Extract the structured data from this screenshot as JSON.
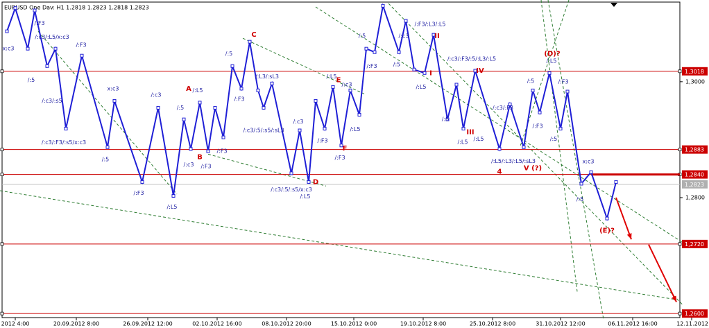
{
  "chart_data": {
    "type": "line",
    "title": "EURUSD  One  Dav: H1  1.2818  1.2823  1.2818  1.2823",
    "x": [
      -12,
      0,
      18,
      28,
      46,
      58,
      73,
      96,
      133,
      143,
      183,
      206,
      228,
      243,
      253,
      266,
      278,
      288,
      300,
      313,
      326,
      338,
      350,
      358,
      370,
      398,
      410,
      423,
      433,
      446,
      458,
      470,
      483,
      496,
      506,
      518,
      530,
      553,
      563,
      575,
      590,
      603,
      623,
      636,
      646,
      663,
      698,
      713,
      733,
      746,
      756,
      770,
      786,
      796,
      816,
      830,
      853,
      866
    ],
    "values": [
      1.3087,
      1.3127,
      1.3057,
      1.3123,
      1.3027,
      1.3057,
      1.2919,
      1.3045,
      1.2887,
      1.2967,
      1.2827,
      1.2955,
      1.2803,
      1.2935,
      1.2884,
      1.2964,
      1.288,
      1.2955,
      1.2904,
      1.3027,
      1.2988,
      1.3069,
      1.2985,
      1.2955,
      1.2997,
      1.2842,
      1.2916,
      1.2827,
      1.2967,
      1.2919,
      1.2991,
      1.289,
      1.2985,
      1.2943,
      1.3057,
      1.3051,
      1.3131,
      1.3051,
      1.3105,
      1.3021,
      1.3015,
      1.3081,
      1.2935,
      1.2995,
      1.2919,
      1.3019,
      1.2884,
      1.2961,
      1.2887,
      1.2985,
      1.2947,
      1.3015,
      1.2919,
      1.2983,
      1.2824,
      1.2844,
      1.2764,
      1.2827
    ],
    "color": "#1f1fd6",
    "xlim": [
      -22,
      958
    ],
    "ylim": [
      1.2593,
      1.3141
    ],
    "xticks": [
      {
        "value": 0,
        "label": "2012 4:00"
      },
      {
        "value": 88,
        "label": "20.09.2012 8:00"
      },
      {
        "value": 191,
        "label": "26.09.2012 12:00"
      },
      {
        "value": 291,
        "label": "02.10.2012 16:00"
      },
      {
        "value": 391,
        "label": "08.10.2012 20:00"
      },
      {
        "value": 488,
        "label": "15.10.2012 0:00"
      },
      {
        "value": 588,
        "label": "19.10.2012 8:00"
      },
      {
        "value": 688,
        "label": "25.10.2012 8:00"
      },
      {
        "value": 786,
        "label": "31.10.2012 12:00"
      },
      {
        "value": 890,
        "label": "06.11.2012 16:00"
      },
      {
        "value": 975,
        "label": "12.11.2012"
      }
    ],
    "yticks": [
      {
        "value": 1.3,
        "label": "1,3000"
      },
      {
        "value": 1.28,
        "label": "1,2800"
      }
    ],
    "levels": [
      {
        "value": 1.3018,
        "label": "1,3018"
      },
      {
        "value": 1.2883,
        "label": "1,2883"
      },
      {
        "value": 1.284,
        "label": "1,2840"
      },
      {
        "value": 1.272,
        "label": "1,2720"
      },
      {
        "value": 1.26,
        "label": "1,2600"
      }
    ],
    "level_color": "#cc0000",
    "current_price": {
      "value": 1.2823,
      "label": "1,2823"
    },
    "trendline_color": "#2e7d32",
    "trendlines": [
      {
        "x": [
          33,
          233
        ],
        "y": [
          1.3087,
          1.2806
        ]
      },
      {
        "x": [
          278,
          448
        ],
        "y": [
          1.2875,
          1.282
        ]
      },
      {
        "x": [
          328,
          503
        ],
        "y": [
          1.3075,
          1.2979
        ]
      },
      {
        "x": [
          433,
          963
        ],
        "y": [
          1.3129,
          1.2722
        ]
      },
      {
        "x": [
          538,
          963
        ],
        "y": [
          1.3135,
          1.2614
        ]
      },
      {
        "x": [
          -22,
          953
        ],
        "y": [
          1.2812,
          1.2624
        ]
      },
      {
        "x": [
          758,
          810
        ],
        "y": [
          1.3141,
          1.2638
        ]
      },
      {
        "x": [
          768,
          848
        ],
        "y": [
          1.3141,
          1.259
        ]
      },
      {
        "x": [
          798,
          728
        ],
        "y": [
          1.3141,
          1.2889
        ]
      }
    ],
    "arrow_color": "#e00000",
    "arrows": [
      {
        "x": [
          866,
          888
        ],
        "y": [
          1.28,
          1.2728
        ]
      },
      {
        "x": [
          913,
          953
        ],
        "y": [
          1.2719,
          1.262
        ]
      }
    ],
    "wave_label_color": "#d00000",
    "wave_labels": [
      {
        "text": "A",
        "x": 250,
        "y": 1.2988
      },
      {
        "text": "B",
        "x": 266,
        "y": 1.287
      },
      {
        "text": "C",
        "x": 344,
        "y": 1.3081
      },
      {
        "text": "D",
        "x": 433,
        "y": 1.2827
      },
      {
        "text": "E",
        "x": 466,
        "y": 1.3003
      },
      {
        "text": "F",
        "x": 475,
        "y": 1.2885
      },
      {
        "text": "I",
        "x": 599,
        "y": 1.3015
      },
      {
        "text": "II",
        "x": 608,
        "y": 1.3079
      },
      {
        "text": "III",
        "x": 656,
        "y": 1.2913
      },
      {
        "text": "IV",
        "x": 670,
        "y": 1.3019
      },
      {
        "text": "4",
        "x": 698,
        "y": 1.2845
      },
      {
        "text": "V (?)",
        "x": 746,
        "y": 1.2851
      },
      {
        "text": "(D)?",
        "x": 774,
        "y": 1.3048
      },
      {
        "text": "(E)?",
        "x": 853,
        "y": 1.2743
      }
    ],
    "signal_label_color": "#1a1aa0",
    "signal_labels": [
      {
        "text": "/:F3",
        "x": 35,
        "y": 1.3101
      },
      {
        "text": "/:c3/:L5/x:c3",
        "x": 53,
        "y": 1.3077
      },
      {
        "text": "/:F3",
        "x": 95,
        "y": 1.3063
      },
      {
        "text": "x:c3",
        "x": -10,
        "y": 1.3057
      },
      {
        "text": "/:5",
        "x": 23,
        "y": 1.3003
      },
      {
        "text": "/:c3/:s5",
        "x": 53,
        "y": 1.2967
      },
      {
        "text": "/:c3/:F3/:s5/x:c3",
        "x": 70,
        "y": 1.2895
      },
      {
        "text": "x:c3",
        "x": 141,
        "y": 1.2988
      },
      {
        "text": "/:c3",
        "x": 203,
        "y": 1.2977
      },
      {
        "text": "/:5",
        "x": 130,
        "y": 1.2866
      },
      {
        "text": "/:F3",
        "x": 178,
        "y": 1.2808
      },
      {
        "text": "/:L5",
        "x": 226,
        "y": 1.2784
      },
      {
        "text": "/:L5",
        "x": 263,
        "y": 1.2985
      },
      {
        "text": "/:5",
        "x": 238,
        "y": 1.2955
      },
      {
        "text": "/:c3",
        "x": 250,
        "y": 1.2857
      },
      {
        "text": "/:F3",
        "x": 275,
        "y": 1.2854
      },
      {
        "text": "/:F3",
        "x": 298,
        "y": 1.288
      },
      {
        "text": "/:5",
        "x": 308,
        "y": 1.3048
      },
      {
        "text": "/:F3",
        "x": 323,
        "y": 1.297
      },
      {
        "text": "/:L3/:sL3",
        "x": 363,
        "y": 1.3009
      },
      {
        "text": "/:c3/:5/:s5/:sL3",
        "x": 358,
        "y": 1.2916
      },
      {
        "text": "/:c3",
        "x": 408,
        "y": 1.2931
      },
      {
        "text": "/:c3/:5/:s5/x:c3",
        "x": 398,
        "y": 1.2814
      },
      {
        "text": "/:L5",
        "x": 418,
        "y": 1.2802
      },
      {
        "text": "/:F3",
        "x": 443,
        "y": 1.2898
      },
      {
        "text": "/:L5",
        "x": 456,
        "y": 1.3009
      },
      {
        "text": "/:c3",
        "x": 478,
        "y": 1.2995
      },
      {
        "text": "/:L5",
        "x": 490,
        "y": 1.2918
      },
      {
        "text": "/:F3",
        "x": 468,
        "y": 1.2869
      },
      {
        "text": "/:5",
        "x": 500,
        "y": 1.3079
      },
      {
        "text": "/:F3",
        "x": 514,
        "y": 1.3027
      },
      {
        "text": "/:F3/:L3/:L5",
        "x": 598,
        "y": 1.3099
      },
      {
        "text": "/:c3",
        "x": 560,
        "y": 1.3079
      },
      {
        "text": "/:5",
        "x": 550,
        "y": 1.303
      },
      {
        "text": "/:L5",
        "x": 585,
        "y": 1.2991
      },
      {
        "text": "/:c3/:F3/:5/:L3/:L5",
        "x": 658,
        "y": 1.3039
      },
      {
        "text": "/:c3/:F3",
        "x": 703,
        "y": 1.2955
      },
      {
        "text": "/:5",
        "x": 620,
        "y": 1.2935
      },
      {
        "text": "/:L5",
        "x": 645,
        "y": 1.2896
      },
      {
        "text": "/:L5",
        "x": 668,
        "y": 1.2901
      },
      {
        "text": "/:L5/:L3/:L5/:sL3",
        "x": 718,
        "y": 1.2863
      },
      {
        "text": "/:F3",
        "x": 753,
        "y": 1.2923
      },
      {
        "text": "/:5",
        "x": 743,
        "y": 1.3001
      },
      {
        "text": "/:L5",
        "x": 773,
        "y": 1.3036
      },
      {
        "text": "/:F3",
        "x": 790,
        "y": 1.3
      },
      {
        "text": "/:5",
        "x": 776,
        "y": 1.2901
      },
      {
        "text": "x:c3",
        "x": 826,
        "y": 1.2862
      },
      {
        "text": "/:5",
        "x": 814,
        "y": 1.2797
      }
    ]
  }
}
